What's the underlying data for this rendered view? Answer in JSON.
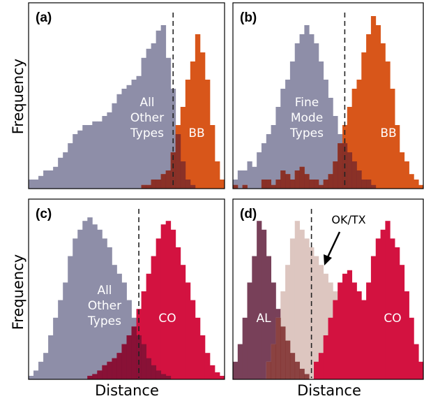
{
  "colors": {
    "all_other": "#8e8ea8",
    "bb": "#d8561a",
    "co": "#d31240",
    "al": "#784059",
    "oktx": "#ddc6c0",
    "overlap_dark": "#7c2a2a",
    "overlap_co": "#7b1235"
  },
  "axes": {
    "x_label": "Distance",
    "y_label": "Frequency"
  },
  "chart_data": [
    {
      "type": "histogram",
      "panel": "(a)",
      "xlabel": "",
      "ylabel": "Frequency",
      "bins": 40,
      "threshold_bin": 29.5,
      "series": [
        {
          "name": "All Other Types",
          "color": "#8e8ea8",
          "label_lines": [
            "All",
            "Other",
            "Types"
          ],
          "values": [
            0.05,
            0.05,
            0.07,
            0.1,
            0.1,
            0.12,
            0.17,
            0.2,
            0.25,
            0.3,
            0.32,
            0.35,
            0.35,
            0.37,
            0.37,
            0.4,
            0.42,
            0.47,
            0.52,
            0.55,
            0.57,
            0.6,
            0.62,
            0.72,
            0.77,
            0.8,
            0.87,
            0.9,
            0.72,
            0.55,
            0.3,
            0.15,
            0.05,
            0.02,
            0,
            0,
            0,
            0,
            0,
            0
          ]
        },
        {
          "name": "BB",
          "color": "#d8561a",
          "label_lines": [
            "BB"
          ],
          "values": [
            0,
            0,
            0,
            0,
            0,
            0,
            0,
            0,
            0,
            0,
            0,
            0,
            0,
            0,
            0,
            0,
            0,
            0,
            0,
            0,
            0,
            0,
            0,
            0.02,
            0.02,
            0.05,
            0.05,
            0.08,
            0.1,
            0.2,
            0.35,
            0.45,
            0.6,
            0.7,
            0.85,
            0.75,
            0.6,
            0.35,
            0.15,
            0.05
          ]
        }
      ]
    },
    {
      "type": "histogram",
      "panel": "(b)",
      "xlabel": "",
      "ylabel": "",
      "bins": 40,
      "threshold_bin": 23.5,
      "series": [
        {
          "name": "Fine Mode Types",
          "color": "#8e8ea8",
          "label_lines": [
            "Fine",
            "Mode",
            "Types"
          ],
          "values": [
            0.05,
            0.1,
            0.1,
            0.15,
            0.12,
            0.2,
            0.25,
            0.3,
            0.35,
            0.45,
            0.55,
            0.6,
            0.7,
            0.8,
            0.85,
            0.9,
            0.85,
            0.8,
            0.7,
            0.6,
            0.5,
            0.4,
            0.3,
            0.25,
            0.2,
            0.15,
            0.1,
            0.05,
            0.05,
            0.02,
            0,
            0,
            0,
            0,
            0,
            0,
            0,
            0,
            0,
            0
          ]
        },
        {
          "name": "BB",
          "color": "#d8561a",
          "label_lines": [
            "BB"
          ],
          "values": [
            0.02,
            0,
            0.02,
            0,
            0,
            0,
            0.05,
            0.05,
            0.02,
            0.05,
            0.1,
            0.08,
            0.05,
            0.1,
            0.12,
            0.08,
            0.05,
            0.05,
            0.02,
            0.05,
            0.08,
            0.15,
            0.25,
            0.35,
            0.45,
            0.55,
            0.6,
            0.75,
            0.85,
            0.95,
            0.9,
            0.8,
            0.7,
            0.55,
            0.35,
            0.2,
            0.15,
            0.08,
            0.05,
            0.02
          ]
        }
      ]
    },
    {
      "type": "histogram",
      "panel": "(c)",
      "xlabel": "Distance",
      "ylabel": "Frequency",
      "bins": 40,
      "threshold_bin": 22.5,
      "series": [
        {
          "name": "All Other Types",
          "color": "#8e8ea8",
          "label_lines": [
            "All",
            "Other",
            "Types"
          ],
          "values": [
            0.02,
            0.05,
            0.1,
            0.15,
            0.25,
            0.35,
            0.45,
            0.55,
            0.7,
            0.8,
            0.85,
            0.9,
            0.92,
            0.88,
            0.85,
            0.8,
            0.75,
            0.65,
            0.6,
            0.55,
            0.45,
            0.35,
            0.25,
            0.2,
            0.12,
            0.08,
            0.05,
            0.03,
            0.02,
            0,
            0,
            0,
            0,
            0,
            0,
            0,
            0,
            0,
            0,
            0
          ]
        },
        {
          "name": "CO",
          "color": "#d31240",
          "label_lines": [
            "CO"
          ],
          "values": [
            0,
            0,
            0,
            0,
            0,
            0,
            0,
            0,
            0,
            0,
            0,
            0,
            0.02,
            0.03,
            0.05,
            0.08,
            0.1,
            0.12,
            0.15,
            0.2,
            0.25,
            0.3,
            0.4,
            0.5,
            0.6,
            0.7,
            0.8,
            0.88,
            0.9,
            0.85,
            0.75,
            0.65,
            0.55,
            0.45,
            0.35,
            0.25,
            0.15,
            0.08,
            0.04,
            0.02
          ]
        }
      ]
    },
    {
      "type": "histogram",
      "panel": "(d)",
      "xlabel": "Distance",
      "ylabel": "",
      "bins": 40,
      "threshold_bin": 16.5,
      "annotation": "OK/TX",
      "series": [
        {
          "name": "AL",
          "color": "#784059",
          "label_lines": [
            "AL"
          ],
          "values": [
            0.1,
            0.2,
            0.35,
            0.55,
            0.7,
            0.9,
            0.85,
            0.7,
            0.55,
            0.4,
            0.3,
            0.22,
            0.15,
            0.1,
            0.06,
            0.03,
            0,
            0,
            0,
            0,
            0,
            0,
            0,
            0,
            0,
            0,
            0,
            0,
            0,
            0,
            0,
            0,
            0,
            0,
            0,
            0,
            0,
            0,
            0,
            0
          ]
        },
        {
          "name": "OK/TX",
          "color": "#ddc6c0",
          "label_lines": [],
          "values": [
            0,
            0,
            0,
            0,
            0,
            0,
            0,
            0.1,
            0.2,
            0.35,
            0.5,
            0.65,
            0.8,
            0.9,
            0.85,
            0.8,
            0.75,
            0.7,
            0.65,
            0.6,
            0.55,
            0.5,
            0.45,
            0.35,
            0.25,
            0.15,
            0.1,
            0.05,
            0,
            0,
            0,
            0,
            0,
            0,
            0,
            0,
            0,
            0,
            0,
            0
          ]
        },
        {
          "name": "CO",
          "color": "#d31240",
          "label_lines": [
            "CO"
          ],
          "values": [
            0,
            0,
            0,
            0,
            0,
            0,
            0,
            0,
            0,
            0,
            0,
            0,
            0,
            0,
            0,
            0,
            0,
            0.1,
            0.15,
            0.25,
            0.35,
            0.45,
            0.55,
            0.6,
            0.62,
            0.55,
            0.5,
            0.45,
            0.55,
            0.7,
            0.8,
            0.85,
            0.9,
            0.8,
            0.75,
            0.65,
            0.5,
            0.35,
            0.2,
            0.1
          ]
        }
      ]
    }
  ]
}
